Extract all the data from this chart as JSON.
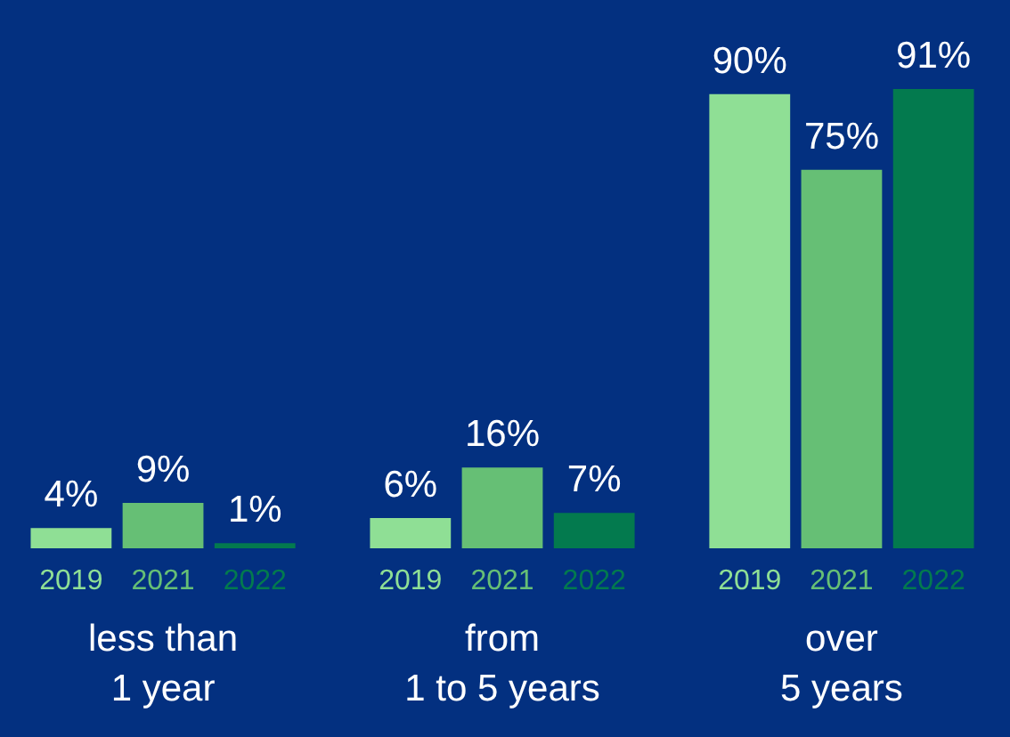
{
  "chart_data": {
    "type": "bar",
    "categories": [
      "less than\n1 year",
      "from\n1 to 5 years",
      "over\n5 years"
    ],
    "series": [
      {
        "name": "2019",
        "color": "#8fdf95",
        "values": [
          4,
          6,
          90
        ],
        "value_labels": [
          "4%",
          "6%",
          "90%"
        ]
      },
      {
        "name": "2021",
        "color": "#66bf75",
        "values": [
          9,
          16,
          75
        ],
        "value_labels": [
          "9%",
          "16%",
          "75%"
        ]
      },
      {
        "name": "2022",
        "color": "#037a4e",
        "values": [
          1,
          7,
          91
        ],
        "value_labels": [
          "1%",
          "7%",
          "91%"
        ]
      }
    ],
    "grid": false
  }
}
